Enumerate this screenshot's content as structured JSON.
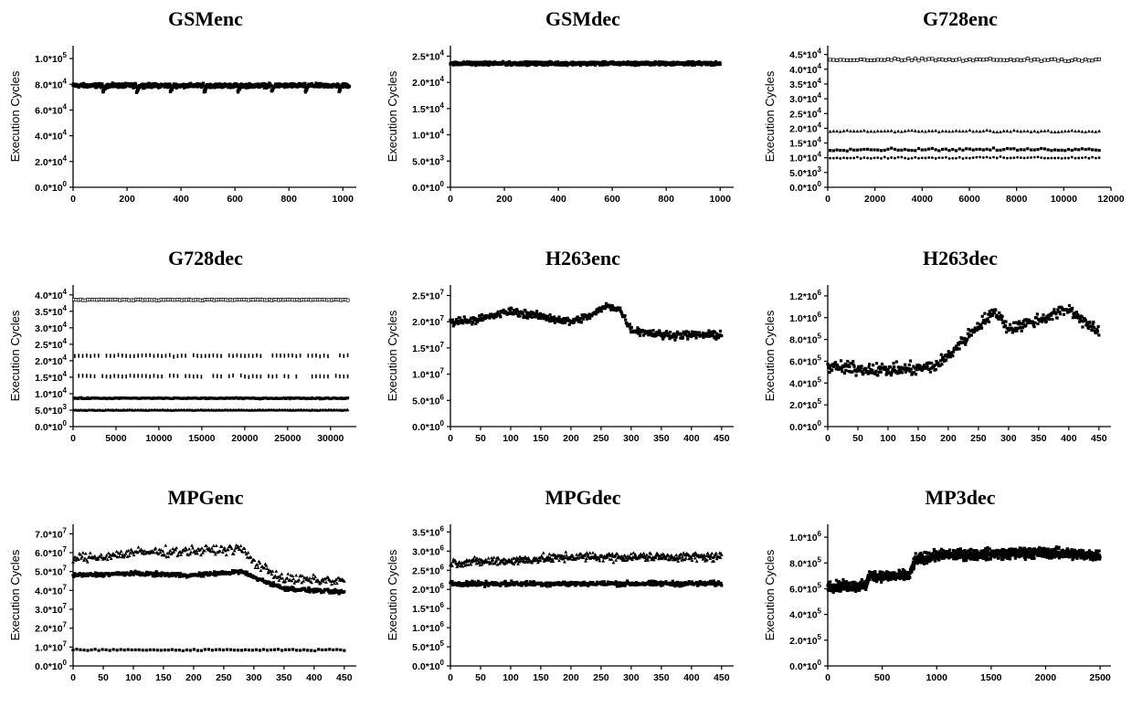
{
  "chart_data": [
    {
      "id": "gsmenc",
      "type": "scatter",
      "title": "GSMenc",
      "xlabel": "",
      "ylabel": "Execution Cycles",
      "xlim": [
        0,
        1050
      ],
      "ylim": [
        0,
        110000
      ],
      "xticks": [
        0,
        200,
        400,
        600,
        800,
        1000
      ],
      "xtick_labels": [
        "0",
        "200",
        "400",
        "600",
        "800",
        "1000"
      ],
      "yticks": [
        0,
        20000,
        40000,
        60000,
        80000,
        100000
      ],
      "ytick_labels": [
        [
          "0.0*10",
          "0"
        ],
        [
          "2.0*10",
          "4"
        ],
        [
          "4.0*10",
          "4"
        ],
        [
          "6.0*10",
          "4"
        ],
        [
          "8.0*10",
          "4"
        ],
        [
          "1.0*10",
          "5"
        ]
      ],
      "series": [
        {
          "marker": "square",
          "n": 1024,
          "x_start": 0,
          "x_end": 1024,
          "mean": 79000,
          "noise": 1500,
          "dips": {
            "period": 125,
            "offset": 110,
            "depth": 5000
          }
        }
      ]
    },
    {
      "id": "gsmdec",
      "type": "scatter",
      "title": "GSMdec",
      "xlabel": "",
      "ylabel": "Execution Cycles",
      "xlim": [
        0,
        1050
      ],
      "ylim": [
        0,
        27000
      ],
      "xticks": [
        0,
        200,
        400,
        600,
        800,
        1000
      ],
      "xtick_labels": [
        "0",
        "200",
        "400",
        "600",
        "800",
        "1000"
      ],
      "yticks": [
        0,
        5000,
        10000,
        15000,
        20000,
        25000
      ],
      "ytick_labels": [
        [
          "0.0*10",
          "0"
        ],
        [
          "5.0*10",
          "3"
        ],
        [
          "1.0*10",
          "4"
        ],
        [
          "1.5*10",
          "4"
        ],
        [
          "2.0*10",
          "4"
        ],
        [
          "2.5*10",
          "4"
        ]
      ],
      "series": [
        {
          "marker": "square",
          "n": 1000,
          "x_start": 0,
          "x_end": 1000,
          "mean": 23600,
          "noise": 300
        }
      ]
    },
    {
      "id": "g728enc",
      "type": "scatter",
      "title": "G728enc",
      "xlabel": "",
      "ylabel": "Execution Cycles",
      "xlim": [
        0,
        12000
      ],
      "ylim": [
        0,
        48000
      ],
      "xticks": [
        0,
        2000,
        4000,
        6000,
        8000,
        10000,
        12000
      ],
      "xtick_labels": [
        "0",
        "2000",
        "4000",
        "6000",
        "8000",
        "10000",
        "12000"
      ],
      "yticks": [
        0,
        5000,
        10000,
        15000,
        20000,
        25000,
        30000,
        35000,
        40000,
        45000
      ],
      "ytick_labels": [
        [
          "0.0*10",
          "0"
        ],
        [
          "5.0*10",
          "3"
        ],
        [
          "1.0*10",
          "4"
        ],
        [
          "1.5*10",
          "4"
        ],
        [
          "2.0*10",
          "4"
        ],
        [
          "2.5*10",
          "4"
        ],
        [
          "3.0*10",
          "4"
        ],
        [
          "3.5*10",
          "4"
        ],
        [
          "4.0*10",
          "4"
        ],
        [
          "4.5*10",
          "4"
        ]
      ],
      "series": [
        {
          "marker": "open-square",
          "n": 80,
          "x_start": 100,
          "x_end": 11500,
          "mean": 43200,
          "noise": 400
        },
        {
          "marker": "triangle",
          "n": 80,
          "x_start": 100,
          "x_end": 11500,
          "mean": 19000,
          "noise": 300
        },
        {
          "marker": "square",
          "n": 80,
          "x_start": 100,
          "x_end": 11500,
          "mean": 12800,
          "noise": 400
        },
        {
          "marker": "dot",
          "n": 80,
          "x_start": 100,
          "x_end": 11500,
          "mean": 10000,
          "noise": 300
        }
      ]
    },
    {
      "id": "g728dec",
      "type": "scatter",
      "title": "G728dec",
      "xlabel": "",
      "ylabel": "Execution Cycles",
      "xlim": [
        0,
        33000
      ],
      "ylim": [
        0,
        43000
      ],
      "xticks": [
        0,
        5000,
        10000,
        15000,
        20000,
        25000,
        30000
      ],
      "xtick_labels": [
        "0",
        "5000",
        "10000",
        "15000",
        "20000",
        "25000",
        "30000"
      ],
      "yticks": [
        0,
        5000,
        10000,
        15000,
        20000,
        25000,
        30000,
        35000,
        40000
      ],
      "ytick_labels": [
        [
          "0.0*10",
          "0"
        ],
        [
          "5.0*10",
          "3"
        ],
        [
          "1.0*10",
          "4"
        ],
        [
          "1.5*10",
          "4"
        ],
        [
          "2.0*10",
          "4"
        ],
        [
          "2.5*10",
          "4"
        ],
        [
          "3.0*10",
          "4"
        ],
        [
          "3.5*10",
          "4"
        ],
        [
          "4.0*10",
          "4"
        ]
      ],
      "series": [
        {
          "marker": "open-square",
          "n": 120,
          "x_start": 100,
          "x_end": 32000,
          "mean": 38500,
          "noise": 150
        },
        {
          "marker": "tick",
          "n": 70,
          "x_start": 200,
          "x_end": 32000,
          "mean": 21500,
          "noise": 200,
          "sparse": true
        },
        {
          "marker": "tick",
          "n": 70,
          "x_start": 200,
          "x_end": 32000,
          "mean": 15300,
          "noise": 200,
          "sparse": true
        },
        {
          "marker": "square",
          "n": 200,
          "x_start": 100,
          "x_end": 32000,
          "mean": 8600,
          "noise": 150
        },
        {
          "marker": "triangle",
          "n": 200,
          "x_start": 100,
          "x_end": 32000,
          "mean": 5000,
          "noise": 100
        }
      ]
    },
    {
      "id": "h263enc",
      "type": "scatter",
      "title": "H263enc",
      "xlabel": "",
      "ylabel": "Execution Cycles",
      "xlim": [
        0,
        470
      ],
      "ylim": [
        0,
        27000000
      ],
      "xticks": [
        0,
        50,
        100,
        150,
        200,
        250,
        300,
        350,
        400,
        450
      ],
      "xtick_labels": [
        "0",
        "50",
        "100",
        "150",
        "200",
        "250",
        "300",
        "350",
        "400",
        "450"
      ],
      "yticks": [
        0,
        5000000,
        10000000,
        15000000,
        20000000,
        25000000
      ],
      "ytick_labels": [
        [
          "0.0*10",
          "0"
        ],
        [
          "5.0*10",
          "6"
        ],
        [
          "1.0*10",
          "7"
        ],
        [
          "1.5*10",
          "7"
        ],
        [
          "2.0*10",
          "7"
        ],
        [
          "2.5*10",
          "7"
        ]
      ],
      "series": [
        {
          "marker": "square",
          "n": 450,
          "x_start": 0,
          "x_end": 450,
          "profile": [
            [
              0,
              20000000
            ],
            [
              50,
              20500000
            ],
            [
              100,
              22000000
            ],
            [
              150,
              21000000
            ],
            [
              200,
              20000000
            ],
            [
              230,
              21000000
            ],
            [
              260,
              23000000
            ],
            [
              280,
              22500000
            ],
            [
              300,
              18500000
            ],
            [
              350,
              17500000
            ],
            [
              400,
              17500000
            ],
            [
              450,
              17500000
            ]
          ],
          "noise": 700000
        }
      ]
    },
    {
      "id": "h263dec",
      "type": "scatter",
      "title": "H263dec",
      "xlabel": "",
      "ylabel": "Execution Cycles",
      "xlim": [
        0,
        470
      ],
      "ylim": [
        0,
        1300000
      ],
      "xticks": [
        0,
        50,
        100,
        150,
        200,
        250,
        300,
        350,
        400,
        450
      ],
      "xtick_labels": [
        "0",
        "50",
        "100",
        "150",
        "200",
        "250",
        "300",
        "350",
        "400",
        "450"
      ],
      "yticks": [
        0,
        200000,
        400000,
        600000,
        800000,
        1000000,
        1200000
      ],
      "ytick_labels": [
        [
          "0.0*10",
          "0"
        ],
        [
          "2.0*10",
          "5"
        ],
        [
          "4.0*10",
          "5"
        ],
        [
          "6.0*10",
          "5"
        ],
        [
          "8.0*10",
          "5"
        ],
        [
          "1.0*10",
          "6"
        ],
        [
          "1.2*10",
          "6"
        ]
      ],
      "series": [
        {
          "marker": "square",
          "n": 450,
          "x_start": 0,
          "x_end": 450,
          "profile": [
            [
              0,
              550000
            ],
            [
              50,
              530000
            ],
            [
              100,
              520000
            ],
            [
              150,
              530000
            ],
            [
              180,
              560000
            ],
            [
              200,
              650000
            ],
            [
              230,
              820000
            ],
            [
              260,
              980000
            ],
            [
              280,
              1050000
            ],
            [
              300,
              900000
            ],
            [
              350,
              980000
            ],
            [
              400,
              1080000
            ],
            [
              430,
              950000
            ],
            [
              450,
              850000
            ]
          ],
          "noise": 55000
        }
      ]
    },
    {
      "id": "mpgenc",
      "type": "scatter",
      "title": "MPGenc",
      "xlabel": "",
      "ylabel": "Execution Cycles",
      "xlim": [
        0,
        470
      ],
      "ylim": [
        0,
        75000000
      ],
      "xticks": [
        0,
        50,
        100,
        150,
        200,
        250,
        300,
        350,
        400,
        450
      ],
      "xtick_labels": [
        "0",
        "50",
        "100",
        "150",
        "200",
        "250",
        "300",
        "350",
        "400",
        "450"
      ],
      "yticks": [
        0,
        10000000,
        20000000,
        30000000,
        40000000,
        50000000,
        60000000,
        70000000
      ],
      "ytick_labels": [
        [
          "0.0*10",
          "0"
        ],
        [
          "1.0*10",
          "7"
        ],
        [
          "2.0*10",
          "7"
        ],
        [
          "3.0*10",
          "7"
        ],
        [
          "4.0*10",
          "7"
        ],
        [
          "5.0*10",
          "7"
        ],
        [
          "6.0*10",
          "7"
        ],
        [
          "7.0*10",
          "7"
        ]
      ],
      "series": [
        {
          "marker": "triangle",
          "n": 300,
          "x_start": 0,
          "x_end": 450,
          "profile": [
            [
              0,
              57000000
            ],
            [
              50,
              58000000
            ],
            [
              100,
              60000000
            ],
            [
              200,
              61000000
            ],
            [
              280,
              62000000
            ],
            [
              300,
              55000000
            ],
            [
              350,
              46000000
            ],
            [
              450,
              45000000
            ]
          ],
          "noise": 2500000
        },
        {
          "marker": "square",
          "n": 450,
          "x_start": 0,
          "x_end": 450,
          "profile": [
            [
              0,
              48000000
            ],
            [
              100,
              49000000
            ],
            [
              200,
              48000000
            ],
            [
              280,
              50000000
            ],
            [
              300,
              47000000
            ],
            [
              350,
              41000000
            ],
            [
              450,
              39000000
            ]
          ],
          "noise": 1000000
        },
        {
          "marker": "square",
          "n": 75,
          "x_start": 0,
          "x_end": 450,
          "mean": 8500000,
          "noise": 400000
        }
      ]
    },
    {
      "id": "mpgdec",
      "type": "scatter",
      "title": "MPGdec",
      "xlabel": "",
      "ylabel": "Execution Cycles",
      "xlim": [
        0,
        470
      ],
      "ylim": [
        0,
        3700000
      ],
      "xticks": [
        0,
        50,
        100,
        150,
        200,
        250,
        300,
        350,
        400,
        450
      ],
      "xtick_labels": [
        "0",
        "50",
        "100",
        "150",
        "200",
        "250",
        "300",
        "350",
        "400",
        "450"
      ],
      "yticks": [
        0,
        500000,
        1000000,
        1500000,
        2000000,
        2500000,
        3000000,
        3500000
      ],
      "ytick_labels": [
        [
          "0.0*10",
          "0"
        ],
        [
          "5.0*10",
          "5"
        ],
        [
          "1.0*10",
          "6"
        ],
        [
          "1.5*10",
          "6"
        ],
        [
          "2.0*10",
          "6"
        ],
        [
          "2.5*10",
          "6"
        ],
        [
          "3.0*10",
          "6"
        ],
        [
          "3.5*10",
          "6"
        ]
      ],
      "series": [
        {
          "marker": "triangle",
          "n": 450,
          "x_start": 0,
          "x_end": 450,
          "profile": [
            [
              0,
              2700000
            ],
            [
              100,
              2750000
            ],
            [
              200,
              2850000
            ],
            [
              300,
              2850000
            ],
            [
              450,
              2850000
            ]
          ],
          "noise": 110000
        },
        {
          "marker": "square",
          "n": 450,
          "x_start": 0,
          "x_end": 450,
          "mean": 2150000,
          "noise": 60000
        }
      ]
    },
    {
      "id": "mp3dec",
      "type": "scatter",
      "title": "MP3dec",
      "xlabel": "",
      "ylabel": "Execution Cycles",
      "xlim": [
        0,
        2600
      ],
      "ylim": [
        0,
        1100000
      ],
      "xticks": [
        0,
        500,
        1000,
        1500,
        2000,
        2500
      ],
      "xtick_labels": [
        "0",
        "500",
        "1000",
        "1500",
        "2000",
        "2500"
      ],
      "yticks": [
        0,
        200000,
        400000,
        600000,
        800000,
        1000000
      ],
      "ytick_labels": [
        [
          "0.0*10",
          "0"
        ],
        [
          "2.0*10",
          "5"
        ],
        [
          "4.0*10",
          "5"
        ],
        [
          "6.0*10",
          "5"
        ],
        [
          "8.0*10",
          "5"
        ],
        [
          "1.0*10",
          "6"
        ]
      ],
      "series": [
        {
          "marker": "square",
          "n": 1200,
          "x_start": 0,
          "x_end": 2500,
          "profile": [
            [
              0,
              620000
            ],
            [
              350,
              620000
            ],
            [
              380,
              700000
            ],
            [
              750,
              700000
            ],
            [
              800,
              820000
            ],
            [
              1000,
              860000
            ],
            [
              1500,
              870000
            ],
            [
              2000,
              880000
            ],
            [
              2500,
              860000
            ]
          ],
          "noise": 40000
        }
      ]
    }
  ]
}
